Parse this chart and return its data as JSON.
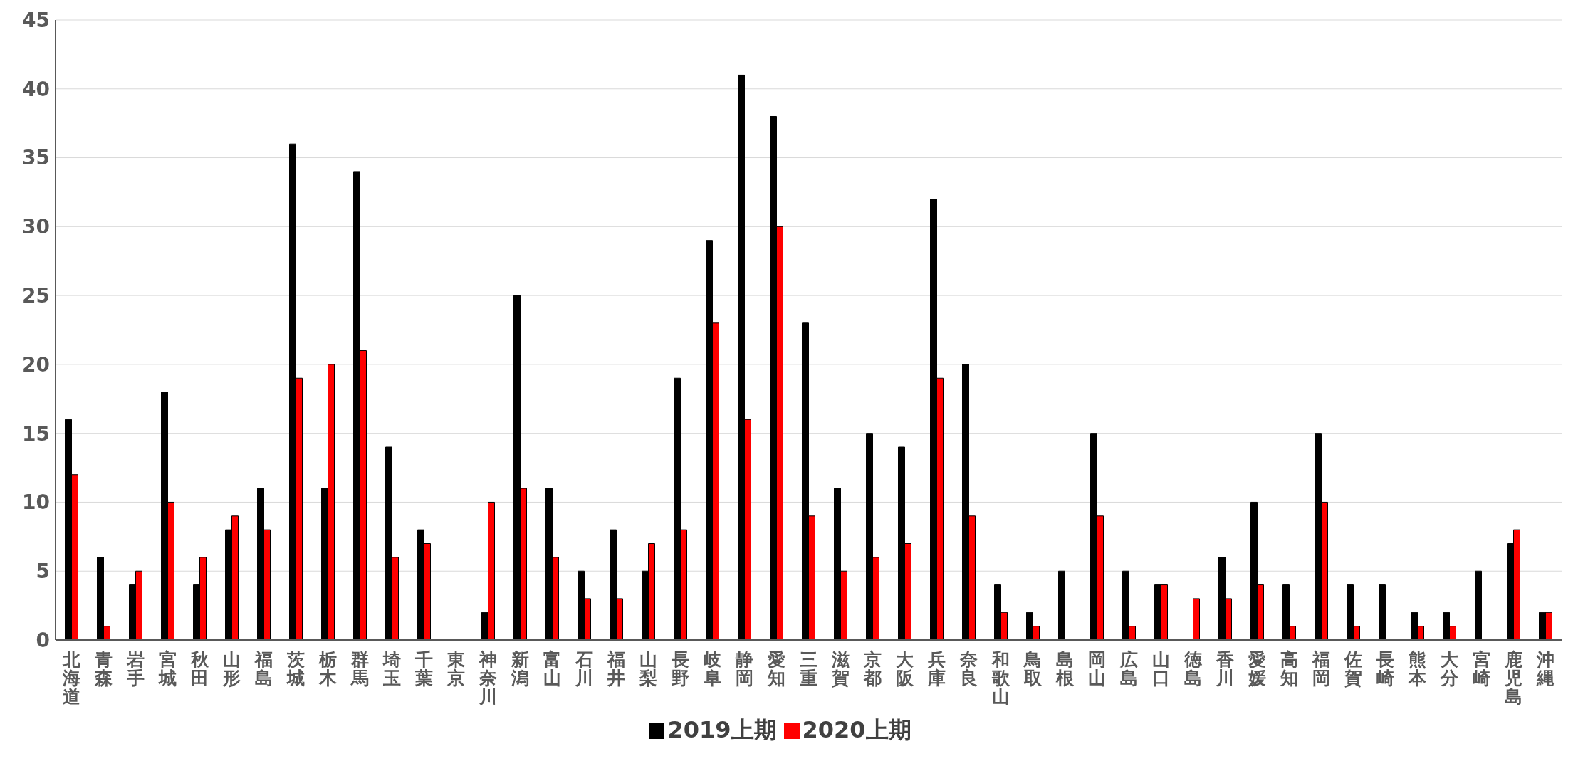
{
  "chart_data": {
    "type": "bar",
    "categories": [
      "北海道",
      "青森",
      "岩手",
      "宮城",
      "秋田",
      "山形",
      "福島",
      "茨城",
      "栃木",
      "群馬",
      "埼玉",
      "千葉",
      "東京",
      "神奈川",
      "新潟",
      "富山",
      "石川",
      "福井",
      "山梨",
      "長野",
      "岐阜",
      "静岡",
      "愛知",
      "三重",
      "滋賀",
      "京都",
      "大阪",
      "兵庫",
      "奈良",
      "和歌山",
      "鳥取",
      "島根",
      "岡山",
      "広島",
      "山口",
      "徳島",
      "香川",
      "愛媛",
      "高知",
      "福岡",
      "佐賀",
      "長崎",
      "熊本",
      "大分",
      "宮崎",
      "鹿児島",
      "沖縄"
    ],
    "series": [
      {
        "name": "2019上期",
        "color": "#000000",
        "values": [
          16,
          6,
          4,
          18,
          4,
          8,
          11,
          36,
          11,
          34,
          14,
          8,
          0,
          2,
          25,
          11,
          5,
          8,
          5,
          19,
          29,
          41,
          38,
          23,
          11,
          15,
          14,
          32,
          20,
          4,
          2,
          5,
          15,
          5,
          4,
          0,
          6,
          10,
          4,
          15,
          4,
          4,
          2,
          2,
          5,
          7,
          2
        ]
      },
      {
        "name": "2020上期",
        "color": "#ff0000",
        "values": [
          12,
          1,
          5,
          10,
          6,
          9,
          8,
          19,
          20,
          21,
          6,
          7,
          0,
          10,
          11,
          6,
          3,
          3,
          7,
          8,
          23,
          16,
          30,
          9,
          5,
          6,
          7,
          19,
          9,
          2,
          1,
          0,
          9,
          1,
          4,
          3,
          3,
          4,
          1,
          10,
          1,
          0,
          1,
          1,
          0,
          8,
          2
        ]
      }
    ],
    "ylim": [
      0,
      45
    ],
    "yticks": [
      0,
      5,
      10,
      15,
      20,
      25,
      30,
      35,
      40,
      45
    ],
    "grid": "y",
    "legend": "bottom"
  }
}
